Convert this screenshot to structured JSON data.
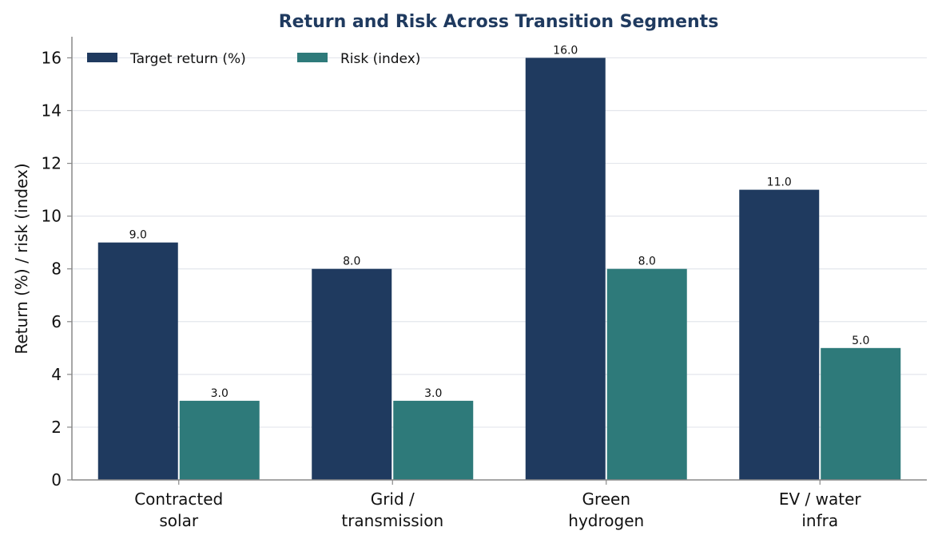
{
  "chart_data": {
    "type": "bar",
    "title": "Return and Risk Across Transition Segments",
    "ylabel": "Return (%) / risk (index)",
    "xlabel": "",
    "categories": [
      [
        "Contracted",
        "solar"
      ],
      [
        "Grid /",
        "transmission"
      ],
      [
        "Green",
        "hydrogen"
      ],
      [
        "EV / water",
        "infra"
      ]
    ],
    "series": [
      {
        "name": "Target return (%)",
        "values": [
          9.0,
          8.0,
          16.0,
          11.0
        ],
        "color": "#1f3a5f"
      },
      {
        "name": "Risk (index)",
        "values": [
          3.0,
          3.0,
          8.0,
          5.0
        ],
        "color": "#2e7a7a"
      }
    ],
    "value_labels": [
      [
        "9.0",
        "8.0",
        "16.0",
        "11.0"
      ],
      [
        "3.0",
        "3.0",
        "8.0",
        "5.0"
      ]
    ],
    "ylim": [
      0,
      16.8
    ],
    "yticks": [
      "0",
      "2",
      "4",
      "6",
      "8",
      "10",
      "12",
      "14",
      "16"
    ],
    "grid": "horizontal",
    "legend_position": "top-left",
    "title_color": "#1f3a5f",
    "grid_color": "#e3e6ec",
    "axis_color": "#888888"
  }
}
